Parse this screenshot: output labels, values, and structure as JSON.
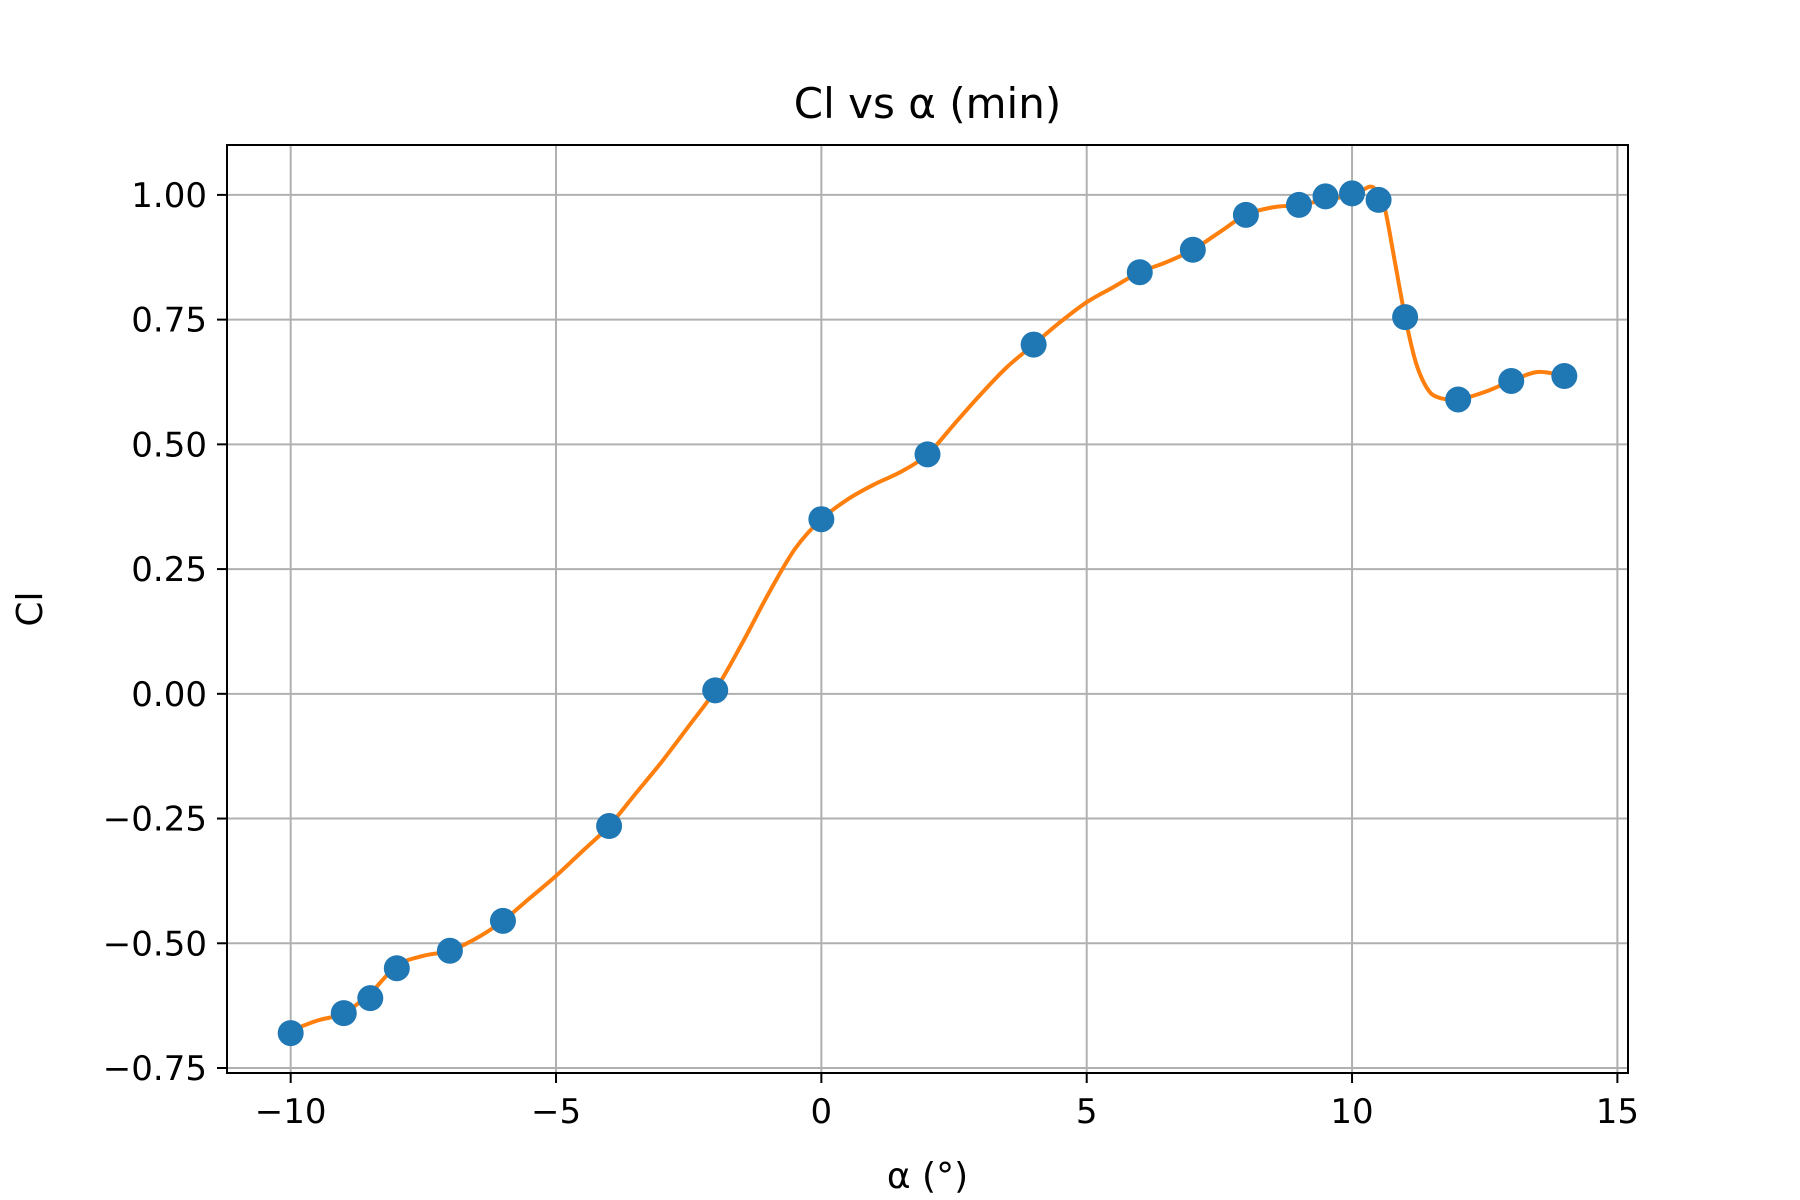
{
  "chart_data": {
    "type": "scatter",
    "title": "Cl vs α (min)",
    "xlabel": "α (°)",
    "ylabel": "Cl",
    "xlim": [
      -11.2,
      15.2
    ],
    "ylim": [
      -0.76,
      1.1
    ],
    "xticks": [
      {
        "value": -10,
        "label": "−10"
      },
      {
        "value": -5,
        "label": "−5"
      },
      {
        "value": 0,
        "label": "0"
      },
      {
        "value": 5,
        "label": "5"
      },
      {
        "value": 10,
        "label": "10"
      },
      {
        "value": 15,
        "label": "15"
      }
    ],
    "yticks": [
      {
        "value": -0.75,
        "label": "−0.75"
      },
      {
        "value": -0.5,
        "label": "−0.50"
      },
      {
        "value": -0.25,
        "label": "−0.25"
      },
      {
        "value": 0,
        "label": "0.00"
      },
      {
        "value": 0.25,
        "label": "0.25"
      },
      {
        "value": 0.5,
        "label": "0.50"
      },
      {
        "value": 0.75,
        "label": "0.75"
      },
      {
        "value": 1.0,
        "label": "1.00"
      }
    ],
    "grid": true,
    "colors": {
      "points": "#1f77b4",
      "curve": "#ff7f0e",
      "grid": "#b0b0b0"
    },
    "series": [
      {
        "kind": "points",
        "x": [
          -10,
          -9,
          -8.5,
          -8,
          -7,
          -6,
          -4,
          -2,
          0,
          2,
          4,
          6,
          7,
          8,
          9,
          9.5,
          10,
          10.5,
          11,
          12,
          13,
          14
        ],
        "y": [
          -0.68,
          -0.64,
          -0.61,
          -0.55,
          -0.515,
          -0.455,
          -0.265,
          0.007,
          0.35,
          0.48,
          0.7,
          0.845,
          0.89,
          0.96,
          0.98,
          0.997,
          1.003,
          0.99,
          0.755,
          0.59,
          0.627,
          0.637
        ]
      },
      {
        "kind": "curve",
        "x": [
          -10,
          -9.5,
          -9,
          -8.5,
          -8,
          -7.5,
          -7,
          -6.5,
          -6,
          -5.5,
          -5,
          -4.5,
          -4,
          -3.5,
          -3,
          -2.5,
          -2,
          -1.5,
          -1,
          -0.5,
          0,
          0.5,
          1,
          1.5,
          2,
          2.5,
          3,
          3.5,
          4,
          4.5,
          5,
          5.5,
          6,
          6.5,
          7,
          7.5,
          8,
          8.5,
          9,
          9.5,
          10,
          10.2,
          10.4,
          10.6,
          10.8,
          11,
          11.2,
          11.4,
          11.6,
          12,
          12.5,
          13,
          13.5,
          14
        ],
        "y": [
          -0.675,
          -0.655,
          -0.64,
          -0.6,
          -0.545,
          -0.525,
          -0.515,
          -0.49,
          -0.455,
          -0.41,
          -0.365,
          -0.315,
          -0.265,
          -0.2,
          -0.135,
          -0.065,
          0.007,
          0.1,
          0.2,
          0.29,
          0.35,
          0.39,
          0.42,
          0.445,
          0.48,
          0.54,
          0.6,
          0.655,
          0.7,
          0.745,
          0.785,
          0.815,
          0.845,
          0.865,
          0.89,
          0.925,
          0.96,
          0.975,
          0.98,
          0.99,
          1.0,
          1.01,
          1.015,
          0.98,
          0.87,
          0.755,
          0.665,
          0.615,
          0.595,
          0.59,
          0.605,
          0.627,
          0.645,
          0.637
        ]
      }
    ]
  }
}
